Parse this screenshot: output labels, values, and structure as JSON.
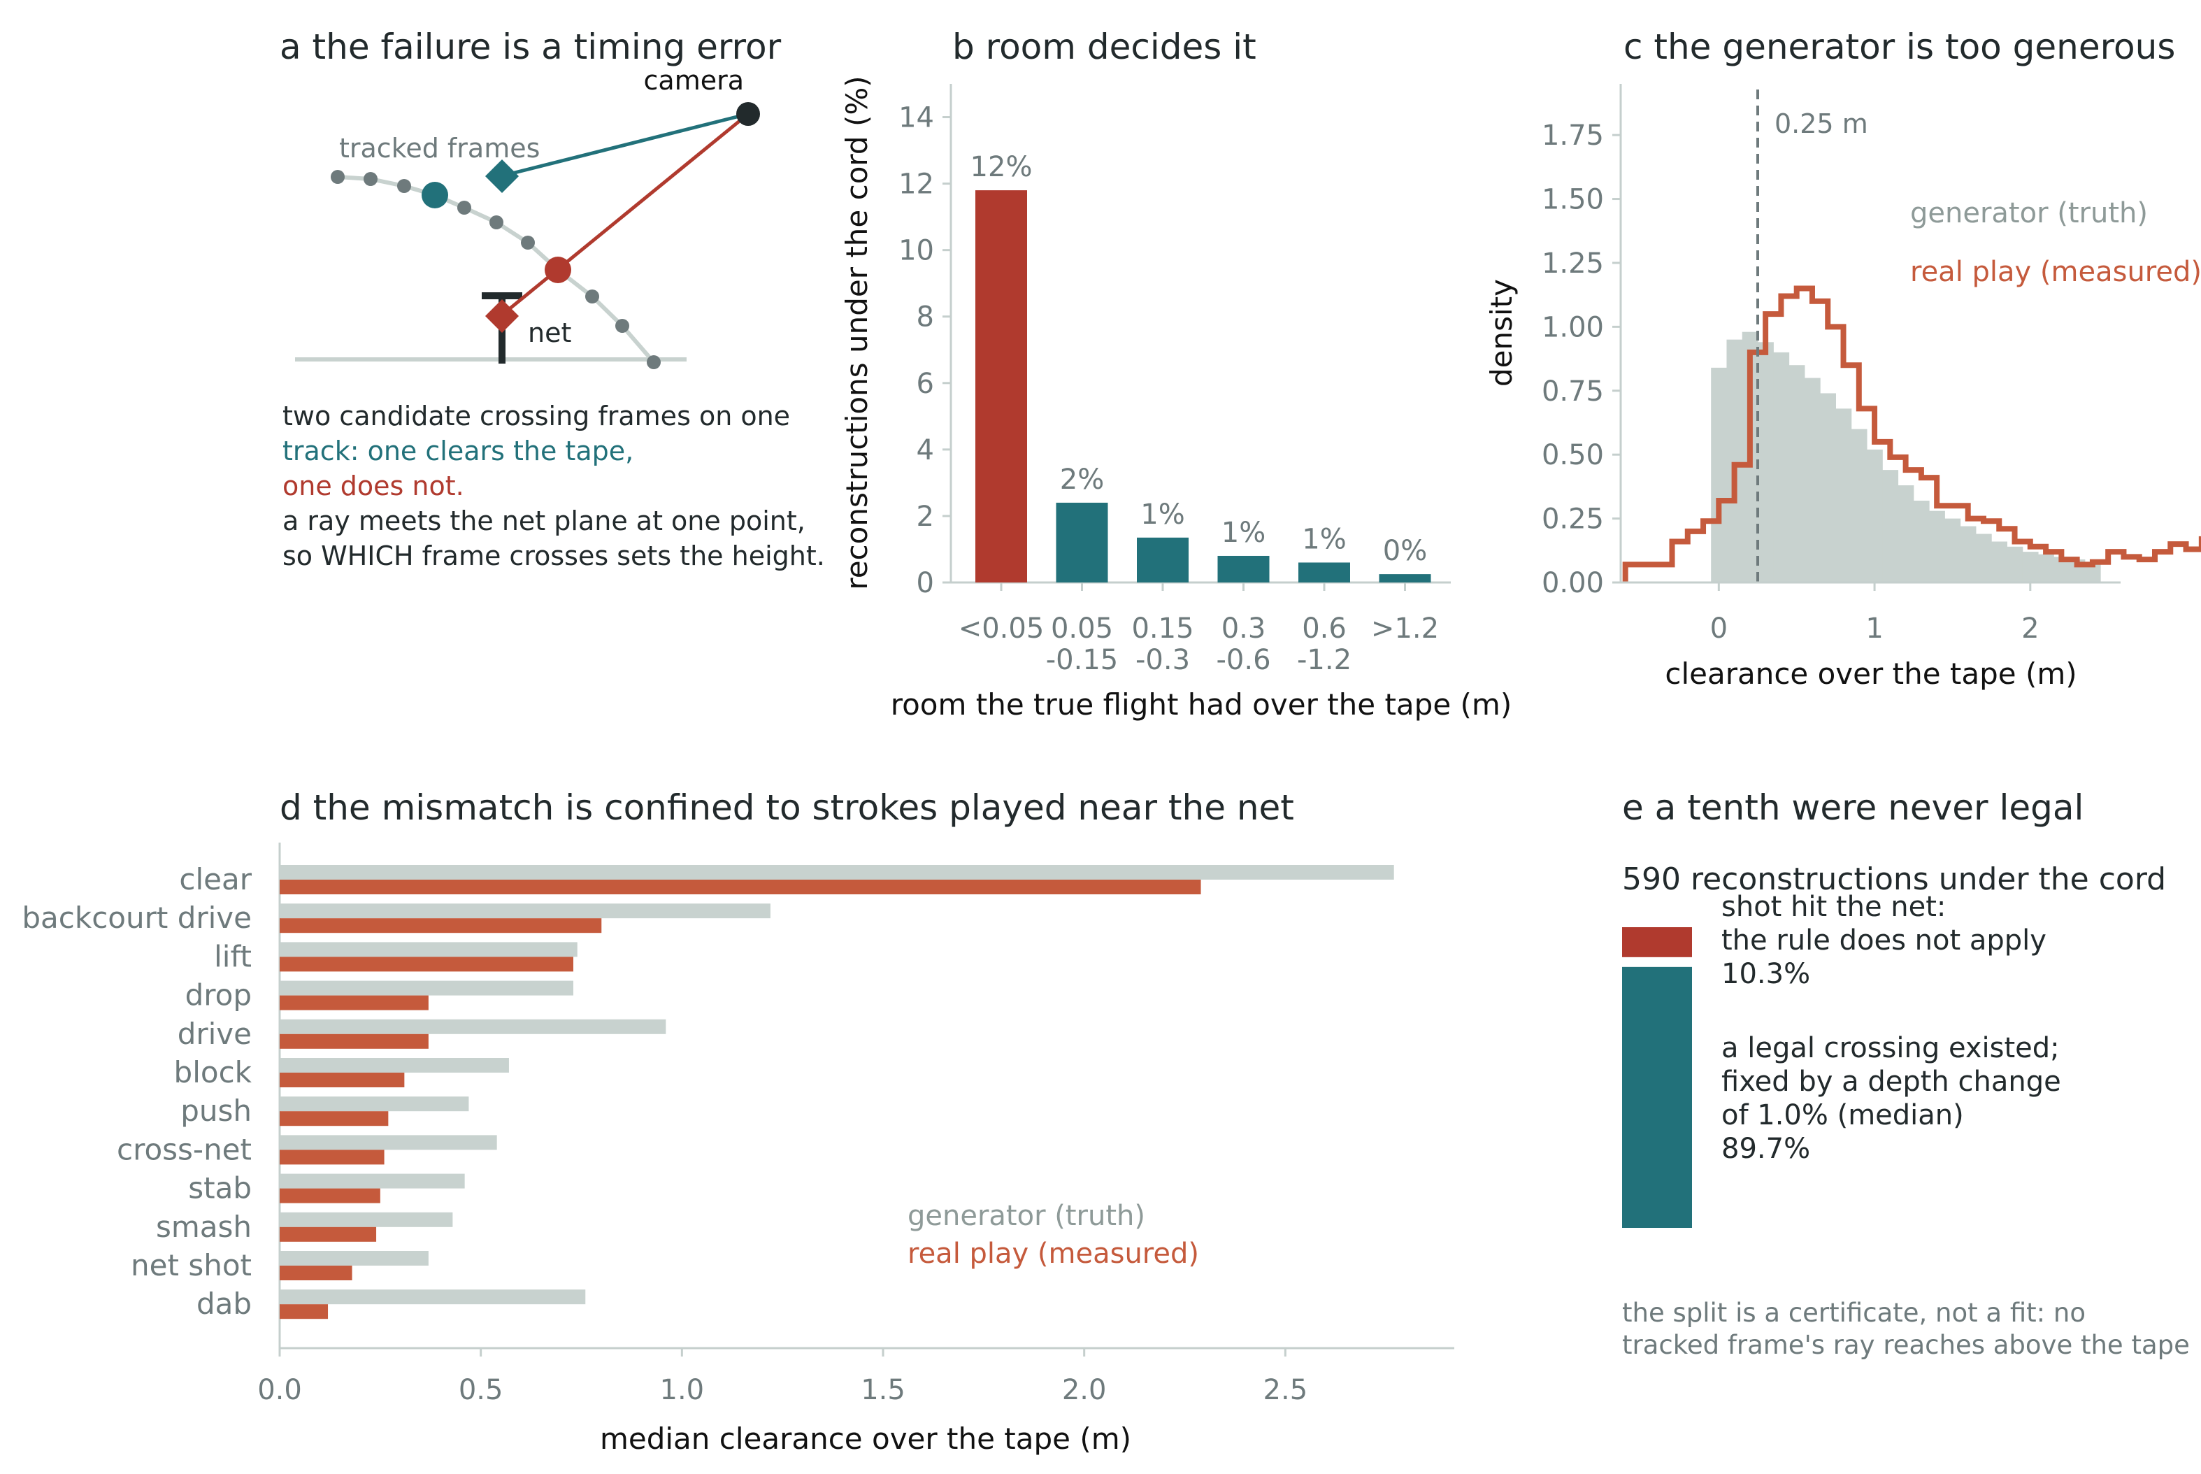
{
  "colors": {
    "red": "#b03a2e",
    "teal": "#22717a",
    "gray_bar": "#c8d2cf",
    "orange": "#c55a3c",
    "dark": "#222a2c",
    "muted": "#6e7a7c",
    "axis": "#c5cfcd"
  },
  "panel_a": {
    "title": "a   the failure is a timing error",
    "label_camera": "camera",
    "label_tracked": "tracked frames",
    "label_net": "net",
    "text_lines": [
      {
        "text": "two candidate crossing frames on one",
        "color": "dark"
      },
      {
        "text": "track: one clears the tape,",
        "color": "teal"
      },
      {
        "text": "one does not.",
        "color": "red"
      },
      {
        "text": "a ray meets the net plane at one point,",
        "color": "dark"
      },
      {
        "text": "so WHICH frame crosses sets the height.",
        "color": "dark"
      }
    ]
  },
  "chart_data": [
    {
      "id": "b",
      "type": "bar",
      "title": "b   room decides it",
      "xlabel": "room the true flight had over the tape (m)",
      "ylabel": "reconstructions under the cord (%)",
      "categories": [
        [
          "<0.05"
        ],
        [
          "0.05",
          "-0.15"
        ],
        [
          "0.15",
          "-0.3"
        ],
        [
          "0.3",
          "-0.6"
        ],
        [
          "0.6",
          "-1.2"
        ],
        [
          ">1.2"
        ]
      ],
      "values": [
        11.8,
        2.4,
        1.35,
        0.8,
        0.6,
        0.25
      ],
      "labels": [
        "12%",
        "2%",
        "1%",
        "1%",
        "1%",
        "0%"
      ],
      "bar_colors": [
        "red",
        "teal",
        "teal",
        "teal",
        "teal",
        "teal"
      ],
      "ylim": [
        0,
        15
      ],
      "yticks": [
        0,
        2,
        4,
        6,
        8,
        10,
        12,
        14
      ]
    },
    {
      "id": "c",
      "type": "histogram",
      "title": "c   the generator is too generous",
      "xlabel": "clearance over the tape (m)",
      "ylabel": "density",
      "xlim": [
        -0.63,
        2.58
      ],
      "ylim": [
        0,
        1.95
      ],
      "xticks": [
        0,
        1,
        2
      ],
      "yticks": [
        "0.00",
        "0.25",
        "0.50",
        "0.75",
        "1.00",
        "1.25",
        "1.50",
        "1.75"
      ],
      "vline": {
        "x": 0.25,
        "label": "0.25 m"
      },
      "bin_width": 0.1,
      "series": [
        {
          "name": "generator (truth)",
          "style": "filled",
          "x_start": -0.05,
          "densities": [
            0.84,
            0.95,
            0.98,
            0.94,
            0.9,
            0.85,
            0.8,
            0.74,
            0.68,
            0.6,
            0.52,
            0.44,
            0.38,
            0.32,
            0.28,
            0.25,
            0.22,
            0.19,
            0.16,
            0.14,
            0.12,
            0.11,
            0.1,
            0.09,
            0.08
          ]
        },
        {
          "name": "real play (measured)",
          "style": "step",
          "x_start": -0.6,
          "densities": [
            0.07,
            0.07,
            0.07,
            0.16,
            0.2,
            0.24,
            0.32,
            0.46,
            0.9,
            1.05,
            1.12,
            1.15,
            1.1,
            1.0,
            0.85,
            0.68,
            0.55,
            0.49,
            0.44,
            0.41,
            0.3,
            0.3,
            0.25,
            0.24,
            0.21,
            0.16,
            0.14,
            0.12,
            0.09,
            0.07,
            0.08,
            0.12,
            0.1,
            0.09,
            0.12,
            0.15,
            0.13,
            0.17,
            0.19,
            0.22,
            0.15,
            0.13,
            0.03
          ]
        }
      ]
    },
    {
      "id": "d",
      "type": "bar",
      "orientation": "horizontal",
      "title": "d   the mismatch is confined to strokes played near the net",
      "xlabel": "median clearance over the tape (m)",
      "xlim": [
        0,
        2.92
      ],
      "xticks": [
        "0.0",
        "0.5",
        "1.0",
        "1.5",
        "2.0",
        "2.5"
      ],
      "categories": [
        "clear",
        "backcourt drive",
        "lift",
        "drop",
        "drive",
        "block",
        "push",
        "cross-net",
        "stab",
        "smash",
        "net shot",
        "dab"
      ],
      "series": [
        {
          "name": "generator (truth)",
          "values": [
            2.77,
            1.22,
            0.74,
            0.73,
            0.96,
            0.57,
            0.47,
            0.54,
            0.46,
            0.43,
            0.37,
            0.76
          ]
        },
        {
          "name": "real play (measured)",
          "values": [
            2.29,
            0.8,
            0.73,
            0.37,
            0.37,
            0.31,
            0.27,
            0.26,
            0.25,
            0.24,
            0.18,
            0.12
          ]
        }
      ]
    },
    {
      "id": "e",
      "type": "stacked-bar",
      "title": "e   a tenth were never legal",
      "header": "590 reconstructions under the cord",
      "segments": [
        {
          "lines": [
            "shot hit the net:",
            "the rule does not apply",
            "10.3%"
          ],
          "value": 10.3,
          "color": "red"
        },
        {
          "lines": [
            "a legal crossing existed;",
            "fixed by a depth change",
            "of 1.0% (median)",
            "89.7%"
          ],
          "value": 89.7,
          "color": "teal"
        }
      ],
      "footnote": [
        "the split is a certificate, not a fit: no",
        "tracked frame's ray reaches above the tape"
      ]
    }
  ]
}
